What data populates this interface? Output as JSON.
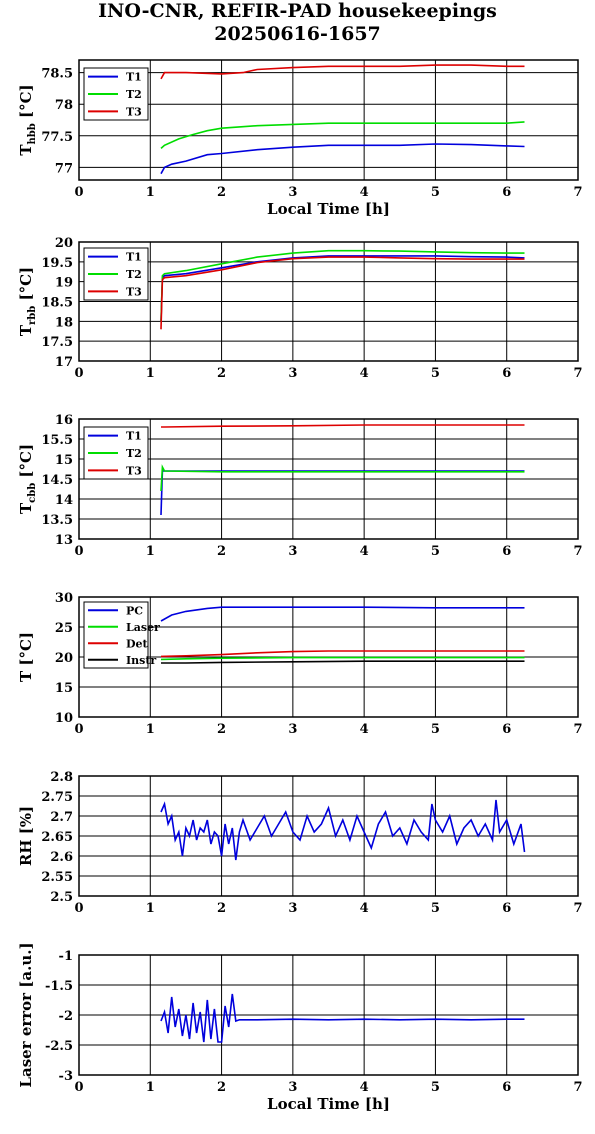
{
  "title": {
    "line1": "INO-CNR, REFIR-PAD housekeepings",
    "line2": "20250616-1657"
  },
  "colors": {
    "blue": "#0000dd",
    "green": "#00dd00",
    "red": "#dd0000",
    "black": "#000000"
  },
  "chart_data": [
    {
      "type": "line",
      "xlabel": "Local Time [h]",
      "ylabel": {
        "main": "T",
        "sub": "hbb",
        "unit": "[°C]"
      },
      "xlim": [
        0,
        7
      ],
      "ylim": [
        76.8,
        78.7
      ],
      "xticks": [
        "0",
        "1",
        "2",
        "3",
        "4",
        "5",
        "6",
        "7"
      ],
      "yticks": [
        {
          "v": 77,
          "label": "77"
        },
        {
          "v": 77.5,
          "label": "77.5"
        },
        {
          "v": 78,
          "label": "78"
        },
        {
          "v": 78.5,
          "label": "78.5"
        }
      ],
      "grid": true,
      "legend_position": "top-left",
      "series": [
        {
          "name": "T1",
          "color": "blue",
          "x": [
            1.15,
            1.2,
            1.3,
            1.5,
            1.8,
            2.0,
            2.5,
            3.0,
            3.5,
            4.0,
            4.5,
            5.0,
            5.5,
            6.0,
            6.25
          ],
          "y": [
            76.9,
            77.0,
            77.05,
            77.1,
            77.2,
            77.22,
            77.28,
            77.32,
            77.35,
            77.35,
            77.35,
            77.37,
            77.36,
            77.34,
            77.33
          ]
        },
        {
          "name": "T2",
          "color": "green",
          "x": [
            1.15,
            1.2,
            1.4,
            1.6,
            1.8,
            2.0,
            2.5,
            3.0,
            3.5,
            4.0,
            4.5,
            5.0,
            5.5,
            6.0,
            6.25
          ],
          "y": [
            77.3,
            77.35,
            77.45,
            77.52,
            77.58,
            77.62,
            77.66,
            77.68,
            77.7,
            77.7,
            77.7,
            77.7,
            77.7,
            77.7,
            77.72
          ]
        },
        {
          "name": "T3",
          "color": "red",
          "x": [
            1.15,
            1.2,
            1.5,
            2.0,
            2.3,
            2.5,
            3.0,
            3.5,
            4.0,
            4.5,
            5.0,
            5.5,
            6.0,
            6.25
          ],
          "y": [
            78.4,
            78.5,
            78.5,
            78.48,
            78.5,
            78.55,
            78.58,
            78.6,
            78.6,
            78.6,
            78.62,
            78.62,
            78.6,
            78.6
          ]
        }
      ]
    },
    {
      "type": "line",
      "xlabel": "",
      "ylabel": {
        "main": "T",
        "sub": "rbb",
        "unit": "[°C]"
      },
      "xlim": [
        0,
        7
      ],
      "ylim": [
        17,
        20
      ],
      "xticks": [
        "0",
        "1",
        "2",
        "3",
        "4",
        "5",
        "6",
        "7"
      ],
      "yticks": [
        {
          "v": 17,
          "label": "17"
        },
        {
          "v": 17.5,
          "label": "17.5"
        },
        {
          "v": 18,
          "label": "18"
        },
        {
          "v": 18.5,
          "label": "18.5"
        },
        {
          "v": 19,
          "label": "19"
        },
        {
          "v": 19.5,
          "label": "19.5"
        },
        {
          "v": 20,
          "label": "20"
        }
      ],
      "grid": true,
      "legend_position": "top-left",
      "series": [
        {
          "name": "T1",
          "color": "blue",
          "x": [
            1.15,
            1.17,
            1.2,
            1.5,
            2.0,
            2.5,
            3.0,
            3.5,
            4.0,
            4.5,
            5.0,
            5.5,
            6.0,
            6.25
          ],
          "y": [
            18.0,
            19.1,
            19.15,
            19.2,
            19.35,
            19.5,
            19.6,
            19.65,
            19.65,
            19.65,
            19.65,
            19.63,
            19.62,
            19.6
          ]
        },
        {
          "name": "T2",
          "color": "green",
          "x": [
            1.15,
            1.17,
            1.2,
            1.5,
            2.0,
            2.5,
            3.0,
            3.5,
            4.0,
            4.5,
            5.0,
            5.5,
            6.0,
            6.25
          ],
          "y": [
            18.0,
            19.15,
            19.2,
            19.28,
            19.45,
            19.62,
            19.72,
            19.78,
            19.78,
            19.77,
            19.75,
            19.73,
            19.72,
            19.72
          ]
        },
        {
          "name": "T3",
          "color": "red",
          "x": [
            1.15,
            1.17,
            1.2,
            1.5,
            2.0,
            2.5,
            3.0,
            3.5,
            4.0,
            4.5,
            5.0,
            5.5,
            6.0,
            6.25
          ],
          "y": [
            17.8,
            19.05,
            19.1,
            19.15,
            19.3,
            19.48,
            19.58,
            19.62,
            19.62,
            19.6,
            19.58,
            19.57,
            19.57,
            19.57
          ]
        }
      ]
    },
    {
      "type": "line",
      "xlabel": "",
      "ylabel": {
        "main": "T",
        "sub": "cbb",
        "unit": "[°C]"
      },
      "xlim": [
        0,
        7
      ],
      "ylim": [
        13,
        16
      ],
      "xticks": [
        "0",
        "1",
        "2",
        "3",
        "4",
        "5",
        "6",
        "7"
      ],
      "yticks": [
        {
          "v": 13,
          "label": "13"
        },
        {
          "v": 13.5,
          "label": "13.5"
        },
        {
          "v": 14,
          "label": "14"
        },
        {
          "v": 14.5,
          "label": "14.5"
        },
        {
          "v": 15,
          "label": "15"
        },
        {
          "v": 15.5,
          "label": "15.5"
        },
        {
          "v": 16,
          "label": "16"
        }
      ],
      "grid": true,
      "legend_position": "top-left",
      "series": [
        {
          "name": "T1",
          "color": "blue",
          "x": [
            1.15,
            1.17,
            1.2,
            2.0,
            3.0,
            4.0,
            5.0,
            6.0,
            6.25
          ],
          "y": [
            13.6,
            14.7,
            14.7,
            14.7,
            14.7,
            14.7,
            14.7,
            14.7,
            14.7
          ]
        },
        {
          "name": "T2",
          "color": "green",
          "x": [
            1.15,
            1.17,
            1.2,
            2.0,
            3.0,
            4.0,
            5.0,
            6.0,
            6.25
          ],
          "y": [
            14.2,
            14.8,
            14.7,
            14.68,
            14.68,
            14.68,
            14.68,
            14.68,
            14.68
          ]
        },
        {
          "name": "T3",
          "color": "red",
          "x": [
            1.15,
            1.2,
            2.0,
            3.0,
            4.0,
            5.0,
            6.0,
            6.25
          ],
          "y": [
            15.8,
            15.8,
            15.82,
            15.83,
            15.85,
            15.85,
            15.85,
            15.85
          ]
        }
      ]
    },
    {
      "type": "line",
      "xlabel": "",
      "ylabel": {
        "main": "T",
        "sub": "",
        "unit": "[°C]"
      },
      "xlim": [
        0,
        7
      ],
      "ylim": [
        10,
        30
      ],
      "xticks": [
        "0",
        "1",
        "2",
        "3",
        "4",
        "5",
        "6",
        "7"
      ],
      "yticks": [
        {
          "v": 10,
          "label": "10"
        },
        {
          "v": 15,
          "label": "15"
        },
        {
          "v": 20,
          "label": "20"
        },
        {
          "v": 25,
          "label": "25"
        },
        {
          "v": 30,
          "label": "30"
        }
      ],
      "grid": true,
      "legend_position": "top-left",
      "series": [
        {
          "name": "PC",
          "color": "blue",
          "x": [
            1.15,
            1.3,
            1.5,
            1.8,
            2.0,
            2.5,
            3.0,
            4.0,
            5.0,
            6.0,
            6.25
          ],
          "y": [
            26,
            27,
            27.6,
            28.1,
            28.3,
            28.3,
            28.3,
            28.3,
            28.2,
            28.2,
            28.2
          ]
        },
        {
          "name": "Laser",
          "color": "green",
          "x": [
            1.15,
            1.5,
            2.0,
            3.0,
            4.0,
            5.0,
            6.0,
            6.25
          ],
          "y": [
            19.6,
            19.7,
            19.8,
            19.9,
            19.9,
            19.9,
            19.9,
            19.9
          ]
        },
        {
          "name": "Det",
          "color": "red",
          "x": [
            1.15,
            1.5,
            2.0,
            2.5,
            3.0,
            3.5,
            4.0,
            5.0,
            6.0,
            6.25
          ],
          "y": [
            20.1,
            20.2,
            20.4,
            20.7,
            20.9,
            21.0,
            21.0,
            21.0,
            21.0,
            21.0
          ]
        },
        {
          "name": "Instr",
          "color": "black",
          "x": [
            1.15,
            1.5,
            2.0,
            3.0,
            4.0,
            5.0,
            6.0,
            6.25
          ],
          "y": [
            19.0,
            19.0,
            19.1,
            19.2,
            19.3,
            19.3,
            19.3,
            19.3
          ]
        }
      ]
    },
    {
      "type": "line",
      "xlabel": "",
      "ylabel": {
        "main": "RH",
        "sub": "",
        "unit": "[%]"
      },
      "xlim": [
        0,
        7
      ],
      "ylim": [
        2.5,
        2.8
      ],
      "xticks": [
        "0",
        "1",
        "2",
        "3",
        "4",
        "5",
        "6",
        "7"
      ],
      "yticks": [
        {
          "v": 2.5,
          "label": "2.5"
        },
        {
          "v": 2.55,
          "label": "2.55"
        },
        {
          "v": 2.6,
          "label": "2.6"
        },
        {
          "v": 2.65,
          "label": "2.65"
        },
        {
          "v": 2.7,
          "label": "2.7"
        },
        {
          "v": 2.75,
          "label": "2.75"
        },
        {
          "v": 2.8,
          "label": "2.8"
        }
      ],
      "grid": true,
      "series": [
        {
          "name": "",
          "color": "blue",
          "x": [
            1.15,
            1.2,
            1.25,
            1.3,
            1.35,
            1.4,
            1.45,
            1.5,
            1.55,
            1.6,
            1.65,
            1.7,
            1.75,
            1.8,
            1.85,
            1.9,
            1.95,
            2.0,
            2.05,
            2.1,
            2.15,
            2.2,
            2.25,
            2.3,
            2.4,
            2.5,
            2.6,
            2.7,
            2.8,
            2.9,
            3.0,
            3.1,
            3.2,
            3.3,
            3.4,
            3.5,
            3.6,
            3.7,
            3.8,
            3.9,
            4.0,
            4.1,
            4.2,
            4.3,
            4.4,
            4.5,
            4.6,
            4.7,
            4.8,
            4.9,
            4.95,
            5.0,
            5.1,
            5.2,
            5.3,
            5.4,
            5.5,
            5.6,
            5.7,
            5.8,
            5.85,
            5.9,
            6.0,
            6.1,
            6.2,
            6.25
          ],
          "y": [
            2.71,
            2.73,
            2.68,
            2.7,
            2.64,
            2.66,
            2.6,
            2.67,
            2.65,
            2.69,
            2.64,
            2.67,
            2.66,
            2.69,
            2.63,
            2.66,
            2.65,
            2.6,
            2.68,
            2.63,
            2.67,
            2.59,
            2.66,
            2.69,
            2.64,
            2.67,
            2.7,
            2.65,
            2.68,
            2.71,
            2.66,
            2.64,
            2.7,
            2.66,
            2.68,
            2.72,
            2.65,
            2.69,
            2.64,
            2.7,
            2.66,
            2.62,
            2.68,
            2.71,
            2.65,
            2.67,
            2.63,
            2.69,
            2.66,
            2.64,
            2.73,
            2.69,
            2.66,
            2.7,
            2.63,
            2.67,
            2.69,
            2.65,
            2.68,
            2.64,
            2.74,
            2.66,
            2.69,
            2.63,
            2.68,
            2.61
          ]
        }
      ]
    },
    {
      "type": "line",
      "xlabel": "Local Time [h]",
      "ylabel": {
        "main": "Laser error [a.u.]",
        "sub": "",
        "unit": ""
      },
      "xlim": [
        0,
        7
      ],
      "ylim": [
        -3,
        -1
      ],
      "xticks": [
        "0",
        "1",
        "2",
        "3",
        "4",
        "5",
        "6",
        "7"
      ],
      "yticks": [
        {
          "v": -3,
          "label": "-3"
        },
        {
          "v": -2.5,
          "label": "-2.5"
        },
        {
          "v": -2,
          "label": "-2"
        },
        {
          "v": -1.5,
          "label": "-1.5"
        },
        {
          "v": -1,
          "label": "-1"
        }
      ],
      "grid": true,
      "series": [
        {
          "name": "",
          "color": "blue",
          "x": [
            1.15,
            1.2,
            1.25,
            1.3,
            1.35,
            1.4,
            1.45,
            1.5,
            1.55,
            1.6,
            1.65,
            1.7,
            1.75,
            1.8,
            1.85,
            1.9,
            1.95,
            2.0,
            2.05,
            2.1,
            2.15,
            2.2,
            2.25,
            2.5,
            3.0,
            3.5,
            4.0,
            4.5,
            5.0,
            5.5,
            6.0,
            6.25
          ],
          "y": [
            -2.1,
            -1.95,
            -2.3,
            -1.7,
            -2.2,
            -1.9,
            -2.35,
            -2.0,
            -2.4,
            -1.8,
            -2.3,
            -1.95,
            -2.45,
            -1.75,
            -2.4,
            -1.9,
            -2.45,
            -2.45,
            -1.85,
            -2.2,
            -1.65,
            -2.1,
            -2.08,
            -2.08,
            -2.07,
            -2.08,
            -2.07,
            -2.08,
            -2.07,
            -2.08,
            -2.07,
            -2.07
          ]
        }
      ]
    }
  ]
}
